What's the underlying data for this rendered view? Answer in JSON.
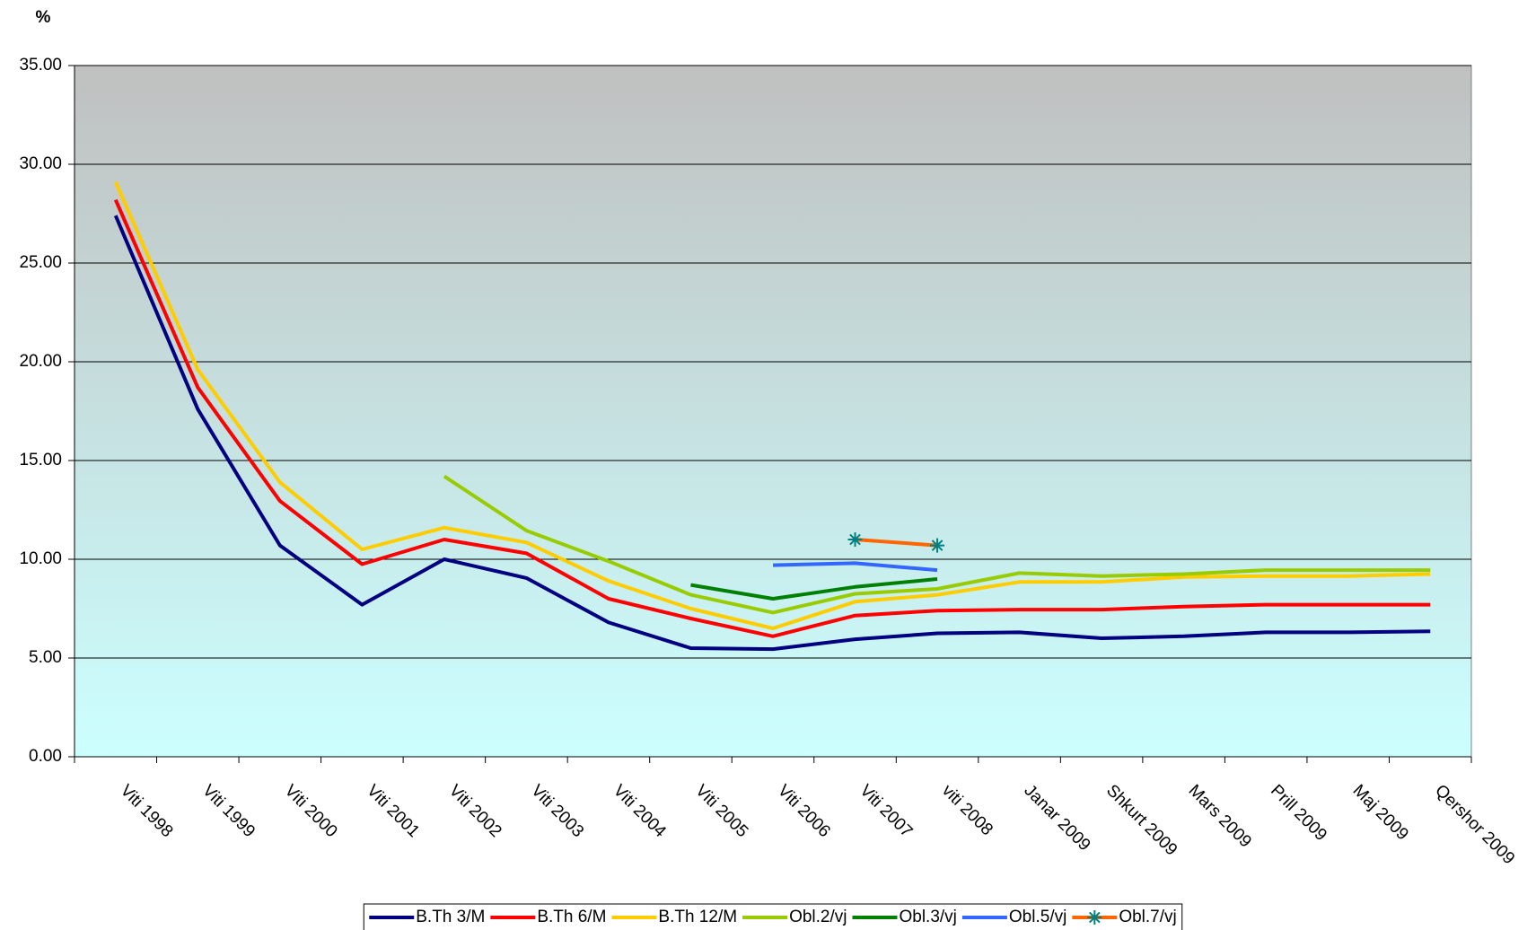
{
  "chart_data": {
    "type": "line",
    "title": "%",
    "categories": [
      "Viti 1998",
      "Viti 1999",
      "Viti 2000",
      "Viti 2001",
      "Viti 2002",
      "Viti 2003",
      "Viti 2004",
      "Viti 2005",
      "Viti 2006",
      "Viti 2007",
      "viti 2008",
      "Janar 2009",
      "Shkurt 2009",
      "Mars 2009",
      "Prill 2009",
      "Maj 2009",
      "Qershor 2009"
    ],
    "series": [
      {
        "name": "B.Th 3/M",
        "color": "#000080",
        "values": [
          27.4,
          17.6,
          10.7,
          7.7,
          10.0,
          9.05,
          6.8,
          5.5,
          5.45,
          5.95,
          6.25,
          6.3,
          6.0,
          6.1,
          6.3,
          6.3,
          6.35
        ]
      },
      {
        "name": "B.Th 6/M",
        "color": "#ff0000",
        "values": [
          28.2,
          18.7,
          12.95,
          9.75,
          11.0,
          10.3,
          8.0,
          7.0,
          6.1,
          7.15,
          7.4,
          7.45,
          7.45,
          7.6,
          7.7,
          7.7,
          7.7
        ]
      },
      {
        "name": "B.Th 12/M",
        "color": "#ffcc00",
        "values": [
          29.1,
          19.6,
          13.9,
          10.5,
          11.6,
          10.85,
          8.9,
          7.5,
          6.5,
          7.85,
          8.2,
          8.85,
          8.85,
          9.1,
          9.15,
          9.15,
          9.25
        ]
      },
      {
        "name": "Obl.2/vj",
        "color": "#99cc00",
        "values": [
          null,
          null,
          null,
          null,
          14.2,
          11.45,
          9.9,
          8.2,
          7.3,
          8.25,
          8.5,
          9.3,
          9.15,
          9.25,
          9.45,
          9.45,
          9.45
        ]
      },
      {
        "name": "Obl.3/vj",
        "color": "#008000",
        "values": [
          null,
          null,
          null,
          null,
          null,
          null,
          null,
          8.7,
          8.0,
          8.6,
          9.0,
          null,
          null,
          null,
          null,
          null,
          null
        ]
      },
      {
        "name": "Obl.5/vj",
        "color": "#3366ff",
        "values": [
          null,
          null,
          null,
          null,
          null,
          null,
          null,
          null,
          9.7,
          9.8,
          9.45,
          null,
          null,
          null,
          null,
          null,
          null
        ]
      },
      {
        "name": "Obl.7/vj",
        "color": "#ff6600",
        "marker": "asterisk",
        "marker_color": "#008080",
        "values": [
          null,
          null,
          null,
          null,
          null,
          null,
          null,
          null,
          null,
          11.0,
          10.7,
          null,
          null,
          null,
          null,
          null,
          null
        ]
      }
    ],
    "ylim": [
      0,
      35
    ],
    "yticks": [
      {
        "value": 0,
        "label": "0.00"
      },
      {
        "value": 5,
        "label": "5.00"
      },
      {
        "value": 10,
        "label": "10.00"
      },
      {
        "value": 15,
        "label": "15.00"
      },
      {
        "value": 20,
        "label": "20.00"
      },
      {
        "value": 25,
        "label": "25.00"
      },
      {
        "value": 30,
        "label": "30.00"
      },
      {
        "value": 35,
        "label": "35.00"
      }
    ],
    "grid": true,
    "legend": "bottom"
  }
}
